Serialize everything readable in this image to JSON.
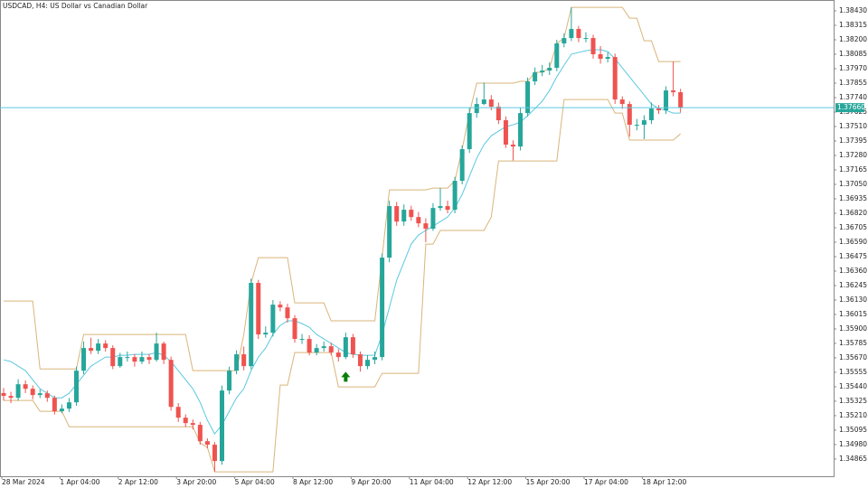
{
  "chart_data": {
    "type": "candlestick",
    "title": "USDCAD, H4:  US Dollar vs Canadian Dollar",
    "categories": [
      "28 Mar 2024",
      null,
      null,
      null,
      null,
      null,
      null,
      null,
      "1 Apr 04:00",
      null,
      null,
      null,
      null,
      null,
      null,
      null,
      "2 Apr 12:00",
      null,
      null,
      null,
      null,
      null,
      null,
      null,
      "3 Apr 20:00",
      null,
      null,
      null,
      null,
      null,
      null,
      null,
      "5 Apr 04:00",
      null,
      null,
      null,
      null,
      null,
      null,
      null,
      "8 Apr 12:00",
      null,
      null,
      null,
      null,
      null,
      null,
      null,
      "9 Apr 20:00",
      null,
      null,
      null,
      null,
      null,
      null,
      null,
      "11 Apr 04:00",
      null,
      null,
      null,
      null,
      null,
      null,
      null,
      "12 Apr 12:00",
      null,
      null,
      null,
      null,
      null,
      null,
      null,
      "15 Apr 20:00",
      null,
      null,
      null,
      null,
      null,
      null,
      null,
      "17 Apr 04:00",
      null,
      null,
      null,
      null,
      null,
      null,
      null,
      "18 Apr 12:00",
      null,
      null,
      null,
      null,
      null
    ],
    "open": [
      1.3539,
      1.35367,
      1.35352,
      1.3546,
      1.35424,
      1.35374,
      1.35388,
      1.35352,
      1.35245,
      1.35266,
      1.35316,
      1.35568,
      1.35748,
      1.35726,
      1.35784,
      1.35748,
      1.35604,
      1.35676,
      1.35676,
      1.3564,
      1.35676,
      1.35654,
      1.35784,
      1.35654,
      1.3528,
      1.35194,
      1.35151,
      1.35137,
      1.35007,
      1.34979,
      1.34849,
      1.3541,
      1.35568,
      1.35698,
      1.35604,
      1.36266,
      1.35856,
      1.3587,
      1.36093,
      1.36071,
      1.35985,
      1.3582,
      1.3582,
      1.35712,
      1.35748,
      1.35762,
      1.35712,
      1.35676,
      1.35834,
      1.35698,
      1.35604,
      1.35654,
      1.35676,
      1.36467,
      1.36877,
      1.36754,
      1.36848,
      1.3679,
      1.3674,
      1.36697,
      1.36862,
      1.36877,
      1.36848,
      1.37078,
      1.3733,
      1.37617,
      1.37689,
      1.37725,
      1.37668,
      1.3756,
      1.37366,
      1.37351,
      1.37617,
      1.37869,
      1.37941,
      1.37955,
      1.37977,
      1.38171,
      1.38214,
      1.38286,
      1.38214,
      1.38214,
      1.38085,
      1.38049,
      1.38063,
      1.37725,
      1.37689,
      1.37524,
      1.37524,
      1.3756,
      1.37653,
      1.37639,
      1.37797,
      1.37783
    ],
    "high": [
      1.3543,
      1.354,
      1.355,
      1.3549,
      1.3545,
      1.3542,
      1.3541,
      1.3537,
      1.353,
      1.3535,
      1.356,
      1.358,
      1.3583,
      1.3582,
      1.3581,
      1.3577,
      1.3571,
      1.3572,
      1.357,
      1.3572,
      1.357,
      1.3587,
      1.358,
      1.3568,
      1.3531,
      1.3522,
      1.3518,
      1.3516,
      1.3503,
      1.35,
      1.3545,
      1.356,
      1.3573,
      1.3576,
      1.363,
      1.3629,
      1.3592,
      1.3613,
      1.3612,
      1.361,
      1.3601,
      1.3586,
      1.3585,
      1.3578,
      1.358,
      1.3579,
      1.3574,
      1.3587,
      1.3586,
      1.3572,
      1.3569,
      1.3572,
      1.365,
      1.3692,
      1.3691,
      1.3689,
      1.3688,
      1.3683,
      1.3678,
      1.369,
      1.3702,
      1.3692,
      1.3711,
      1.3736,
      1.3766,
      1.3774,
      1.3786,
      1.3776,
      1.377,
      1.3759,
      1.374,
      1.3766,
      1.379,
      1.3798,
      1.38,
      1.3802,
      1.382,
      1.3825,
      1.38458,
      1.3831,
      1.3826,
      1.3824,
      1.3815,
      1.381,
      1.3809,
      1.3775,
      1.3771,
      1.3757,
      1.376,
      1.377,
      1.3768,
      1.3783,
      1.38027,
      1.3781
    ],
    "low": [
      1.3533,
      1.3531,
      1.3533,
      1.3539,
      1.3534,
      1.3535,
      1.3532,
      1.3522,
      1.3523,
      1.3524,
      1.3529,
      1.3554,
      1.357,
      1.357,
      1.3572,
      1.3558,
      1.3559,
      1.3564,
      1.356,
      1.3562,
      1.3562,
      1.3564,
      1.3562,
      1.3525,
      1.3516,
      1.3512,
      1.351,
      1.3498,
      1.3495,
      1.34763,
      1.3482,
      1.3538,
      1.3554,
      1.3557,
      1.3558,
      1.3582,
      1.3583,
      1.3584,
      1.3604,
      1.3595,
      1.3579,
      1.3578,
      1.3569,
      1.3569,
      1.3572,
      1.3569,
      1.3564,
      1.3566,
      1.3567,
      1.3556,
      1.3558,
      1.3562,
      1.3565,
      1.3643,
      1.3672,
      1.3672,
      1.3676,
      1.3671,
      1.3659,
      1.3668,
      1.3684,
      1.3682,
      1.3682,
      1.3705,
      1.373,
      1.3758,
      1.3768,
      1.3764,
      1.3753,
      1.3734,
      1.3724,
      1.3732,
      1.3759,
      1.3784,
      1.3791,
      1.3792,
      1.3795,
      1.3814,
      1.3819,
      1.3818,
      1.3818,
      1.3805,
      1.3801,
      1.3802,
      1.3769,
      1.3765,
      1.3743,
      1.3748,
      1.3741,
      1.3753,
      1.3761,
      1.3761,
      1.3775,
      1.3762
    ],
    "close": [
      1.35367,
      1.35352,
      1.3546,
      1.35424,
      1.35374,
      1.35388,
      1.35352,
      1.35245,
      1.35266,
      1.35316,
      1.35568,
      1.35748,
      1.35726,
      1.35784,
      1.35748,
      1.35604,
      1.35676,
      1.35676,
      1.3564,
      1.35676,
      1.35654,
      1.35784,
      1.35654,
      1.3528,
      1.35194,
      1.35151,
      1.35137,
      1.35007,
      1.34979,
      1.34849,
      1.3541,
      1.35568,
      1.35698,
      1.35604,
      1.36266,
      1.35856,
      1.3587,
      1.36093,
      1.36071,
      1.35985,
      1.3582,
      1.3582,
      1.35712,
      1.35748,
      1.35762,
      1.35712,
      1.35676,
      1.35834,
      1.35698,
      1.35604,
      1.35654,
      1.35676,
      1.36467,
      1.36877,
      1.36754,
      1.36848,
      1.3679,
      1.3674,
      1.36697,
      1.36862,
      1.36877,
      1.36848,
      1.37078,
      1.3733,
      1.37617,
      1.37689,
      1.37725,
      1.37668,
      1.3756,
      1.37366,
      1.37351,
      1.37617,
      1.37869,
      1.37941,
      1.37955,
      1.37977,
      1.38171,
      1.38214,
      1.38286,
      1.38214,
      1.38214,
      1.38085,
      1.38049,
      1.38063,
      1.37725,
      1.37689,
      1.37524,
      1.37524,
      1.3756,
      1.37653,
      1.37639,
      1.37797,
      1.37783,
      1.3766
    ],
    "up_color": "#26a69a",
    "down_color": "#ef5350",
    "overlays": [
      {
        "color": "#d9b57a",
        "values": [
          1.36122,
          1.36122,
          1.36122,
          1.36122,
          1.36122,
          1.35582,
          1.35582,
          1.35582,
          1.35582,
          1.35582,
          1.35582,
          1.35856,
          1.35856,
          1.35856,
          1.35856,
          1.35856,
          1.35856,
          1.35856,
          1.35856,
          1.35856,
          1.35856,
          1.35856,
          1.35856,
          1.35856,
          1.35856,
          1.35856,
          1.35568,
          1.35568,
          1.35568,
          1.35568,
          1.35568,
          1.35568,
          1.35568,
          1.35856,
          1.36266,
          1.36467,
          1.36467,
          1.36467,
          1.36467,
          1.36467,
          1.36107,
          1.36107,
          1.36107,
          1.36107,
          1.36107,
          1.35964,
          1.35964,
          1.35964,
          1.35964,
          1.35964,
          1.35964,
          1.35964,
          1.36467,
          1.37006,
          1.37006,
          1.37006,
          1.37006,
          1.37006,
          1.37006,
          1.3702,
          1.3702,
          1.3702,
          1.37078,
          1.3733,
          1.37617,
          1.37855,
          1.37855,
          1.37855,
          1.37855,
          1.37855,
          1.37855,
          1.37869,
          1.37869,
          1.37941,
          1.37941,
          1.37977,
          1.38171,
          1.38214,
          1.38458,
          1.38458,
          1.38458,
          1.38458,
          1.38458,
          1.38458,
          1.38458,
          1.38458,
          1.38372,
          1.38372,
          1.38192,
          1.38192,
          1.38027,
          1.38027,
          1.38027,
          1.38027
        ]
      },
      {
        "color": "#5bc8e0",
        "values": [
          1.35654,
          1.3564,
          1.35604,
          1.35568,
          1.35496,
          1.35424,
          1.35388,
          1.35352,
          1.35352,
          1.35388,
          1.3546,
          1.35532,
          1.35604,
          1.3564,
          1.35676,
          1.35676,
          1.3569,
          1.3569,
          1.35698,
          1.35698,
          1.35698,
          1.35712,
          1.3569,
          1.3564,
          1.35568,
          1.35496,
          1.35424,
          1.35316,
          1.35173,
          1.35065,
          1.35137,
          1.35245,
          1.35352,
          1.35424,
          1.35568,
          1.35676,
          1.35748,
          1.35856,
          1.35928,
          1.35964,
          1.35964,
          1.35942,
          1.35913,
          1.35856,
          1.3582,
          1.35784,
          1.35748,
          1.35712,
          1.35698,
          1.3569,
          1.3569,
          1.3569,
          1.35856,
          1.36071,
          1.36287,
          1.36431,
          1.36575,
          1.36647,
          1.36683,
          1.36718,
          1.36754,
          1.3679,
          1.36862,
          1.3697,
          1.37114,
          1.37258,
          1.37366,
          1.37437,
          1.37473,
          1.37509,
          1.37524,
          1.37545,
          1.37596,
          1.37653,
          1.37711,
          1.37797,
          1.37905,
          1.37998,
          1.38085,
          1.38099,
          1.38113,
          1.38121,
          1.38121,
          1.38106,
          1.38049,
          1.37977,
          1.37905,
          1.37833,
          1.37761,
          1.37689,
          1.37653,
          1.37639,
          1.37617,
          1.37617
        ]
      },
      {
        "color": "#d9b57a",
        "values": [
          1.35331,
          1.35331,
          1.35331,
          1.35331,
          1.35331,
          1.35245,
          1.35245,
          1.35245,
          1.35245,
          1.35122,
          1.35122,
          1.35122,
          1.35122,
          1.35122,
          1.35122,
          1.35122,
          1.35122,
          1.35122,
          1.35122,
          1.35122,
          1.35122,
          1.35122,
          1.35122,
          1.35122,
          1.35122,
          1.35122,
          1.35122,
          1.34993,
          1.34957,
          1.34763,
          1.34763,
          1.34763,
          1.34763,
          1.34763,
          1.34763,
          1.34763,
          1.34763,
          1.34763,
          1.35453,
          1.35453,
          1.35712,
          1.35712,
          1.35712,
          1.35712,
          1.35712,
          1.35712,
          1.35439,
          1.35439,
          1.35439,
          1.35439,
          1.35439,
          1.35439,
          1.35547,
          1.35547,
          1.35547,
          1.35547,
          1.35547,
          1.35547,
          1.36575,
          1.36575,
          1.36683,
          1.36683,
          1.36683,
          1.36683,
          1.36683,
          1.36683,
          1.36683,
          1.3679,
          1.37236,
          1.37236,
          1.37236,
          1.37236,
          1.37236,
          1.37236,
          1.37236,
          1.37236,
          1.37236,
          1.37725,
          1.37725,
          1.37725,
          1.37725,
          1.37725,
          1.37725,
          1.37725,
          1.37617,
          1.37617,
          1.37402,
          1.37402,
          1.37402,
          1.37402,
          1.37402,
          1.37402,
          1.37402,
          1.37452
        ]
      }
    ],
    "signals": [
      {
        "category": 47,
        "color": "#0a7d0a"
      }
    ],
    "current_price": {
      "value": 1.3766,
      "label": "1.37660",
      "color": "#5bc8e0"
    },
    "ylim": [
      1.34728,
      1.38502
    ],
    "yticks": [
      {
        "value": 1.3843,
        "label": "1.38430"
      },
      1.38315,
      {
        "value": 1.382,
        "label": "1.38200"
      },
      1.38085,
      {
        "value": 1.3797,
        "label": "1.37970"
      },
      1.37855,
      {
        "value": 1.3774,
        "label": "1.37740"
      },
      1.37625,
      {
        "value": 1.3751,
        "label": "1.37510"
      },
      1.37395,
      {
        "value": 1.3728,
        "label": "1.37280"
      },
      1.37165,
      {
        "value": 1.3705,
        "label": "1.37050"
      },
      1.36935,
      {
        "value": 1.3682,
        "label": "1.36820"
      },
      1.36705,
      {
        "value": 1.3659,
        "label": "1.36590"
      },
      1.36475,
      {
        "value": 1.3636,
        "label": "1.36360"
      },
      1.36245,
      {
        "value": 1.3613,
        "label": "1.36130"
      },
      1.36015,
      {
        "value": 1.359,
        "label": "1.35900"
      },
      1.35785,
      {
        "value": 1.3567,
        "label": "1.35670"
      },
      1.35555,
      {
        "value": 1.3544,
        "label": "1.35440"
      },
      1.35325,
      {
        "value": 1.3521,
        "label": "1.35210"
      },
      1.35095,
      {
        "value": 1.3498,
        "label": "1.34980"
      },
      1.34865
    ]
  }
}
